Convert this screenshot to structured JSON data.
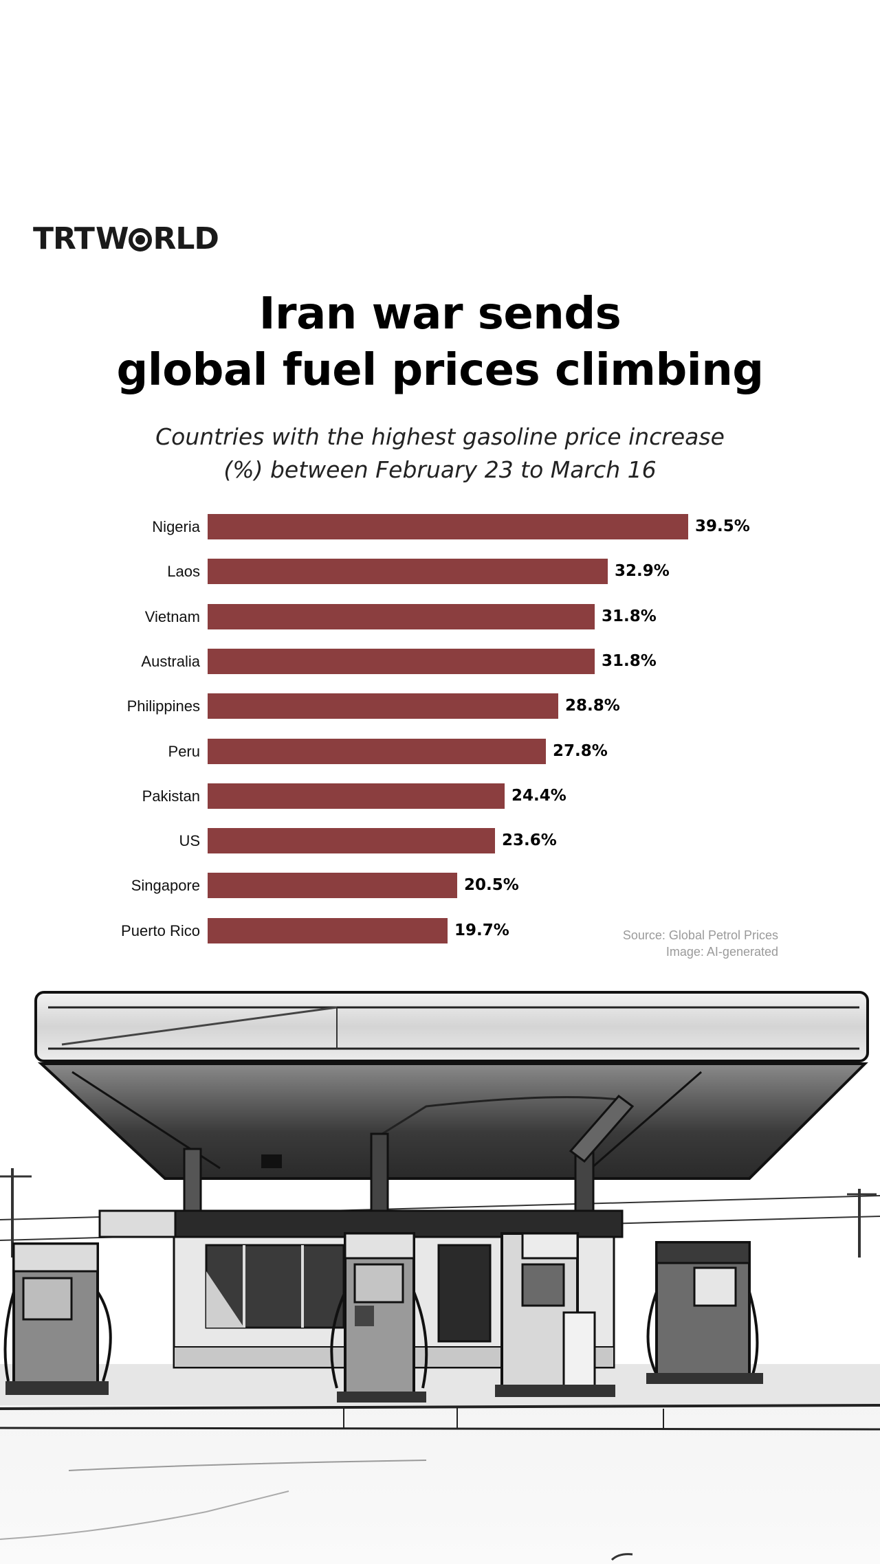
{
  "brand": {
    "logo_left": "TRT",
    "logo_o": "O",
    "logo_right": "RLD",
    "logo_full": "TRTWORLD"
  },
  "header": {
    "title_line1": "Iran war sends",
    "title_line2": "global fuel prices climbing",
    "subtitle_line1": "Countries with the highest gasoline price increase",
    "subtitle_line2": "(%) between February 23 to March 16"
  },
  "footer": {
    "source": "Source: Global Petrol Prices",
    "image_credit": "Image: AI-generated"
  },
  "colors": {
    "bar": "#8b3e3f",
    "text": "#000000",
    "source_text": "#9a9a9a",
    "background": "#ffffff"
  },
  "chart_data": {
    "type": "bar",
    "orientation": "horizontal",
    "title": "Iran war sends global fuel prices climbing",
    "subtitle": "Countries with the highest gasoline price increase (%) between February 23 to March 16",
    "xlabel": "",
    "ylabel": "",
    "categories": [
      "Nigeria",
      "Laos",
      "Vietnam",
      "Australia",
      "Philippines",
      "Peru",
      "Pakistan",
      "US",
      "Singapore",
      "Puerto Rico"
    ],
    "values": [
      39.5,
      32.9,
      31.8,
      31.8,
      28.8,
      27.8,
      24.4,
      23.6,
      20.5,
      19.7
    ],
    "value_labels": [
      "39.5%",
      "32.9%",
      "31.8%",
      "31.8%",
      "28.8%",
      "27.8%",
      "24.4%",
      "23.6%",
      "20.5%",
      "19.7%"
    ],
    "unit": "%",
    "xlim": [
      0,
      40
    ],
    "grid": false,
    "legend": null,
    "bar_color": "#8b3e3f",
    "source": "Source: Global Petrol Prices"
  }
}
